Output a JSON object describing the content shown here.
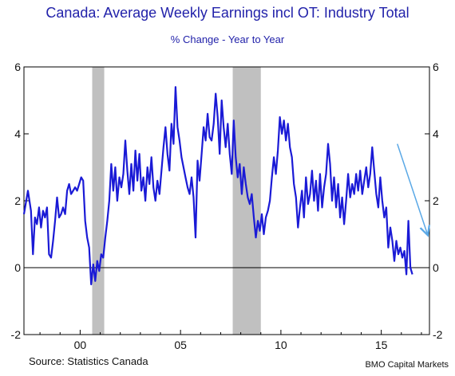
{
  "title": "Canada: Average Weekly Earnings incl OT: Industry Total",
  "subtitle": "% Change - Year to Year",
  "source": "Source:  Statistics Canada",
  "credit": "BMO Capital Markets",
  "colors": {
    "line": "#1a1ad6",
    "recession": "#c0c0c0",
    "arrow": "#5aa8e6",
    "text": "#2222aa"
  },
  "chart_data": {
    "type": "line",
    "title": "Canada: Average Weekly Earnings incl OT: Industry Total",
    "subtitle": "% Change - Year to Year",
    "ylim": [
      -2,
      6
    ],
    "xlim": [
      1997.2,
      2017.4
    ],
    "y_ticks": [
      "6",
      "4",
      "2",
      "0",
      "-2"
    ],
    "y_tick_values": [
      6,
      4,
      2,
      0,
      -2
    ],
    "x_ticks": [
      "00",
      "05",
      "10",
      "15"
    ],
    "x_tick_values": [
      2000,
      2005,
      2010,
      2015
    ],
    "recession_shading": [
      [
        2000.6,
        2001.2
      ],
      [
        2007.6,
        2009.0
      ]
    ],
    "trend_arrow": {
      "from": [
        2015.8,
        3.7
      ],
      "to": [
        2017.3,
        1.0
      ]
    },
    "series": [
      {
        "values": [
          [
            1997.2,
            1.6
          ],
          [
            1997.4,
            2.3
          ],
          [
            1997.55,
            1.7
          ],
          [
            1997.65,
            0.4
          ],
          [
            1997.75,
            1.5
          ],
          [
            1997.85,
            1.3
          ],
          [
            1997.95,
            1.8
          ],
          [
            1998.05,
            1.2
          ],
          [
            1998.15,
            1.7
          ],
          [
            1998.25,
            1.5
          ],
          [
            1998.35,
            1.8
          ],
          [
            1998.45,
            0.4
          ],
          [
            1998.55,
            0.3
          ],
          [
            1998.65,
            0.8
          ],
          [
            1998.75,
            1.4
          ],
          [
            1998.85,
            2.1
          ],
          [
            1998.95,
            1.5
          ],
          [
            1999.05,
            1.6
          ],
          [
            1999.15,
            1.8
          ],
          [
            1999.25,
            1.6
          ],
          [
            1999.35,
            2.3
          ],
          [
            1999.45,
            2.5
          ],
          [
            1999.55,
            2.2
          ],
          [
            1999.65,
            2.3
          ],
          [
            1999.75,
            2.4
          ],
          [
            1999.85,
            2.3
          ],
          [
            1999.95,
            2.5
          ],
          [
            2000.05,
            2.7
          ],
          [
            2000.15,
            2.6
          ],
          [
            2000.25,
            1.4
          ],
          [
            2000.35,
            0.9
          ],
          [
            2000.45,
            0.6
          ],
          [
            2000.55,
            -0.5
          ],
          [
            2000.65,
            0.1
          ],
          [
            2000.75,
            -0.4
          ],
          [
            2000.85,
            0.2
          ],
          [
            2000.95,
            -0.1
          ],
          [
            2001.05,
            0.4
          ],
          [
            2001.15,
            0.3
          ],
          [
            2001.25,
            0.9
          ],
          [
            2001.35,
            1.4
          ],
          [
            2001.45,
            2.0
          ],
          [
            2001.55,
            3.1
          ],
          [
            2001.65,
            2.3
          ],
          [
            2001.75,
            3.0
          ],
          [
            2001.85,
            2.0
          ],
          [
            2001.95,
            2.7
          ],
          [
            2002.05,
            2.4
          ],
          [
            2002.15,
            2.8
          ],
          [
            2002.25,
            3.8
          ],
          [
            2002.35,
            2.9
          ],
          [
            2002.45,
            2.2
          ],
          [
            2002.55,
            3.1
          ],
          [
            2002.65,
            2.3
          ],
          [
            2002.75,
            3.5
          ],
          [
            2002.85,
            2.6
          ],
          [
            2002.95,
            3.4
          ],
          [
            2003.05,
            2.3
          ],
          [
            2003.15,
            2.7
          ],
          [
            2003.25,
            2.0
          ],
          [
            2003.35,
            3.0
          ],
          [
            2003.45,
            2.5
          ],
          [
            2003.55,
            3.3
          ],
          [
            2003.65,
            2.4
          ],
          [
            2003.75,
            2.0
          ],
          [
            2003.85,
            2.6
          ],
          [
            2003.95,
            2.2
          ],
          [
            2004.05,
            2.9
          ],
          [
            2004.15,
            3.6
          ],
          [
            2004.25,
            4.2
          ],
          [
            2004.35,
            3.4
          ],
          [
            2004.45,
            2.9
          ],
          [
            2004.55,
            4.3
          ],
          [
            2004.65,
            3.7
          ],
          [
            2004.75,
            5.4
          ],
          [
            2004.85,
            4.2
          ],
          [
            2004.95,
            3.8
          ],
          [
            2005.05,
            3.3
          ],
          [
            2005.15,
            3.0
          ],
          [
            2005.25,
            2.7
          ],
          [
            2005.35,
            2.4
          ],
          [
            2005.45,
            2.2
          ],
          [
            2005.55,
            2.7
          ],
          [
            2005.65,
            2.1
          ],
          [
            2005.75,
            0.9
          ],
          [
            2005.85,
            3.2
          ],
          [
            2005.95,
            2.6
          ],
          [
            2006.05,
            3.4
          ],
          [
            2006.15,
            4.2
          ],
          [
            2006.25,
            3.8
          ],
          [
            2006.35,
            4.6
          ],
          [
            2006.45,
            3.9
          ],
          [
            2006.55,
            3.8
          ],
          [
            2006.65,
            4.3
          ],
          [
            2006.75,
            5.2
          ],
          [
            2006.85,
            4.5
          ],
          [
            2006.95,
            3.4
          ],
          [
            2007.05,
            5.0
          ],
          [
            2007.15,
            4.2
          ],
          [
            2007.25,
            3.6
          ],
          [
            2007.35,
            4.3
          ],
          [
            2007.45,
            3.4
          ],
          [
            2007.55,
            2.8
          ],
          [
            2007.65,
            4.4
          ],
          [
            2007.75,
            3.3
          ],
          [
            2007.85,
            2.7
          ],
          [
            2007.95,
            3.1
          ],
          [
            2008.05,
            2.2
          ],
          [
            2008.15,
            3.0
          ],
          [
            2008.25,
            2.5
          ],
          [
            2008.35,
            2.1
          ],
          [
            2008.45,
            1.9
          ],
          [
            2008.55,
            2.2
          ],
          [
            2008.65,
            1.5
          ],
          [
            2008.75,
            0.9
          ],
          [
            2008.85,
            1.4
          ],
          [
            2008.95,
            1.1
          ],
          [
            2009.05,
            1.6
          ],
          [
            2009.15,
            1.0
          ],
          [
            2009.25,
            1.5
          ],
          [
            2009.35,
            1.7
          ],
          [
            2009.45,
            2.0
          ],
          [
            2009.55,
            2.7
          ],
          [
            2009.65,
            3.3
          ],
          [
            2009.75,
            2.8
          ],
          [
            2009.85,
            3.5
          ],
          [
            2009.95,
            4.5
          ],
          [
            2010.05,
            4.0
          ],
          [
            2010.15,
            4.4
          ],
          [
            2010.25,
            3.8
          ],
          [
            2010.35,
            4.3
          ],
          [
            2010.45,
            3.6
          ],
          [
            2010.55,
            3.3
          ],
          [
            2010.65,
            2.5
          ],
          [
            2010.75,
            2.1
          ],
          [
            2010.85,
            1.2
          ],
          [
            2010.95,
            1.8
          ],
          [
            2011.05,
            2.3
          ],
          [
            2011.15,
            1.5
          ],
          [
            2011.25,
            2.7
          ],
          [
            2011.35,
            1.9
          ],
          [
            2011.45,
            2.2
          ],
          [
            2011.55,
            2.9
          ],
          [
            2011.65,
            2.0
          ],
          [
            2011.75,
            2.6
          ],
          [
            2011.85,
            1.7
          ],
          [
            2011.95,
            2.8
          ],
          [
            2012.05,
            1.8
          ],
          [
            2012.15,
            2.4
          ],
          [
            2012.25,
            2.8
          ],
          [
            2012.35,
            3.7
          ],
          [
            2012.45,
            3.1
          ],
          [
            2012.55,
            2.0
          ],
          [
            2012.65,
            2.7
          ],
          [
            2012.75,
            1.8
          ],
          [
            2012.85,
            2.5
          ],
          [
            2012.95,
            1.5
          ],
          [
            2013.05,
            2.1
          ],
          [
            2013.15,
            1.3
          ],
          [
            2013.25,
            2.0
          ],
          [
            2013.35,
            2.8
          ],
          [
            2013.45,
            2.1
          ],
          [
            2013.55,
            2.5
          ],
          [
            2013.65,
            2.2
          ],
          [
            2013.75,
            2.8
          ],
          [
            2013.85,
            2.3
          ],
          [
            2013.95,
            2.9
          ],
          [
            2014.05,
            2.2
          ],
          [
            2014.15,
            2.6
          ],
          [
            2014.25,
            3.0
          ],
          [
            2014.35,
            2.4
          ],
          [
            2014.45,
            2.8
          ],
          [
            2014.55,
            3.6
          ],
          [
            2014.65,
            2.9
          ],
          [
            2014.75,
            2.2
          ],
          [
            2014.85,
            1.8
          ],
          [
            2014.95,
            2.7
          ],
          [
            2015.05,
            2.0
          ],
          [
            2015.15,
            1.5
          ],
          [
            2015.25,
            1.8
          ],
          [
            2015.35,
            0.6
          ],
          [
            2015.45,
            1.2
          ],
          [
            2015.55,
            0.8
          ],
          [
            2015.65,
            0.2
          ],
          [
            2015.75,
            0.8
          ],
          [
            2015.85,
            0.4
          ],
          [
            2015.95,
            0.6
          ],
          [
            2016.05,
            0.3
          ],
          [
            2016.15,
            0.5
          ],
          [
            2016.25,
            -0.2
          ],
          [
            2016.35,
            1.4
          ],
          [
            2016.45,
            0.0
          ],
          [
            2016.55,
            -0.2
          ]
        ]
      }
    ]
  }
}
